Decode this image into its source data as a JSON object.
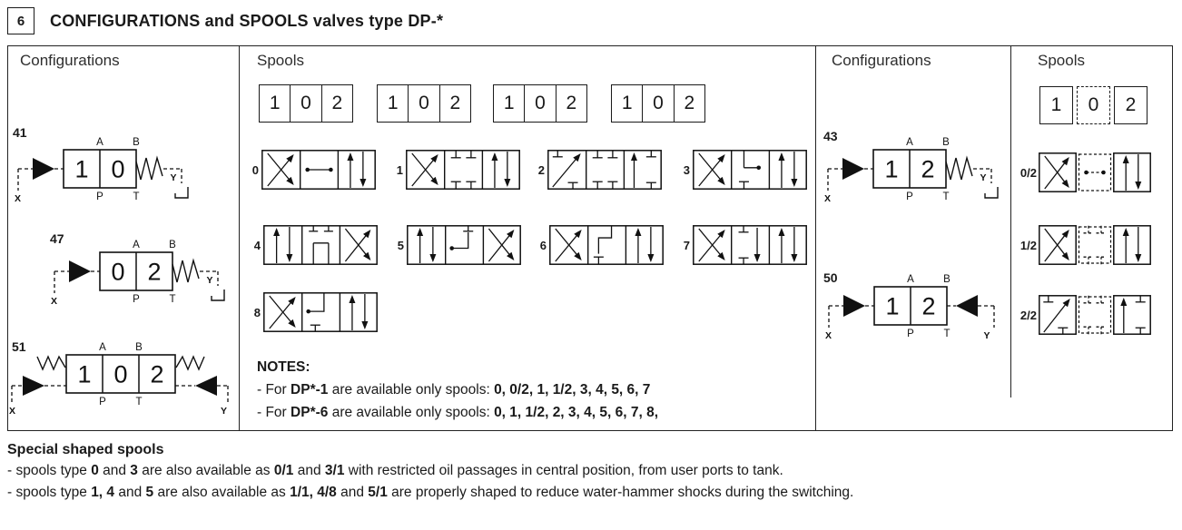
{
  "header": {
    "section_number": "6",
    "title": "CONFIGURATIONS and SPOOLS valves type DP-*"
  },
  "panels": {
    "configurations_left_label": "Configurations",
    "spools_main_label": "Spools",
    "configurations_right_label": "Configurations",
    "spools_right_label": "Spools"
  },
  "position_labels": [
    "1",
    "0",
    "2"
  ],
  "configurations": {
    "left": [
      {
        "id": "41",
        "cells": [
          "1",
          "0"
        ],
        "left_actuator": "solenoid",
        "right_actuator": "spring",
        "ports_top": [
          "A",
          "B"
        ],
        "ports_bottom": [
          "P",
          "T"
        ],
        "pilot_left": "X",
        "pilot_right": "Y"
      },
      {
        "id": "47",
        "cells": [
          "0",
          "2"
        ],
        "left_actuator": "solenoid",
        "right_actuator": "spring",
        "ports_top": [
          "A",
          "B"
        ],
        "ports_bottom": [
          "P",
          "T"
        ],
        "pilot_left": "X",
        "pilot_right": "Y"
      },
      {
        "id": "51",
        "cells": [
          "1",
          "0",
          "2"
        ],
        "left_actuator": "spring-solenoid",
        "right_actuator": "spring-solenoid",
        "ports_top": [
          "A",
          "B"
        ],
        "ports_bottom": [
          "P",
          "T"
        ],
        "pilot_left": "X",
        "pilot_right": "Y"
      }
    ],
    "right": [
      {
        "id": "43",
        "cells": [
          "1",
          "2"
        ],
        "left_actuator": "solenoid",
        "right_actuator": "spring",
        "ports_top": [
          "A",
          "B"
        ],
        "ports_bottom": [
          "P",
          "T"
        ],
        "pilot_left": "X",
        "pilot_right": "Y"
      },
      {
        "id": "50",
        "cells": [
          "1",
          "2"
        ],
        "left_actuator": "solenoid",
        "right_actuator": "solenoid",
        "ports_top": [
          "A",
          "B"
        ],
        "ports_bottom": [
          "P",
          "T"
        ],
        "pilot_left": "X",
        "pilot_right": "Y"
      }
    ]
  },
  "spools": {
    "main": [
      {
        "id": "0",
        "cells": [
          "cross",
          "dots-line",
          "parallel"
        ]
      },
      {
        "id": "1",
        "cells": [
          "cross",
          "blocked4",
          "parallel"
        ]
      },
      {
        "id": "2",
        "cells": [
          "diag-blocked",
          "blocked4",
          "up-blocked"
        ]
      },
      {
        "id": "3",
        "cells": [
          "cross",
          "bridge-dot",
          "parallel"
        ]
      },
      {
        "id": "4",
        "cells": [
          "parallel",
          "u-top",
          "cross"
        ]
      },
      {
        "id": "5",
        "cells": [
          "parallel",
          "dot-elbow",
          "cross"
        ]
      },
      {
        "id": "6",
        "cells": [
          "cross",
          "z-shape",
          "parallel"
        ]
      },
      {
        "id": "7",
        "cells": [
          "cross",
          "t-arrow-down",
          "parallel"
        ]
      },
      {
        "id": "8",
        "cells": [
          "cross",
          "dot-bracket",
          "parallel"
        ]
      }
    ],
    "right": [
      {
        "id": "0/2",
        "cells": [
          "cross",
          "dots-line",
          "parallel"
        ],
        "dashed_middle": true
      },
      {
        "id": "1/2",
        "cells": [
          "cross",
          "blocked4",
          "parallel"
        ],
        "dashed_middle": true
      },
      {
        "id": "2/2",
        "cells": [
          "diag-blocked",
          "blocked4",
          "up-blocked"
        ],
        "dashed_middle": true
      }
    ]
  },
  "notes": {
    "title": "NOTES:",
    "lines": [
      [
        {
          "t": "- For ",
          "b": false
        },
        {
          "t": "DP*-1",
          "b": true
        },
        {
          "t": " are available only spools: ",
          "b": false
        },
        {
          "t": "0, 0/2, 1, 1/2, 3, 4, 5, 6, 7",
          "b": true
        }
      ],
      [
        {
          "t": "- For ",
          "b": false
        },
        {
          "t": "DP*-6",
          "b": true
        },
        {
          "t": " are available only spools: ",
          "b": false
        },
        {
          "t": "0, 1, 1/2, 2, 3, 4, 5, 6, 7, 8,",
          "b": true
        }
      ]
    ]
  },
  "footer": {
    "title": "Special shaped spools",
    "lines": [
      [
        {
          "t": "- spools type ",
          "b": false
        },
        {
          "t": "0",
          "b": true
        },
        {
          "t": " and ",
          "b": false
        },
        {
          "t": "3",
          "b": true
        },
        {
          "t": " are also available as ",
          "b": false
        },
        {
          "t": "0/1",
          "b": true
        },
        {
          "t": " and ",
          "b": false
        },
        {
          "t": "3/1",
          "b": true
        },
        {
          "t": " with restricted oil passages in central position, from user ports to tank.",
          "b": false
        }
      ],
      [
        {
          "t": "- spools type ",
          "b": false
        },
        {
          "t": "1, 4",
          "b": true
        },
        {
          "t": " and ",
          "b": false
        },
        {
          "t": "5",
          "b": true
        },
        {
          "t": " are also available as ",
          "b": false
        },
        {
          "t": "1/1, 4/8",
          "b": true
        },
        {
          "t": " and ",
          "b": false
        },
        {
          "t": "5/1",
          "b": true
        },
        {
          "t": " are properly shaped to reduce water-hammer shocks during the switching.",
          "b": false
        }
      ]
    ]
  }
}
